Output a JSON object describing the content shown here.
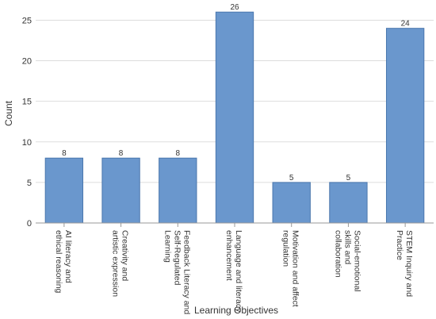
{
  "chart_data": {
    "type": "bar",
    "categories": [
      "AI literacy and ethical reasoning",
      "Creativity and artistic expression",
      "Feedback Literacy and Self-Regulated Learning",
      "Language and literacy enhancement",
      "Motivation and affect regulation",
      "Social-emotional skills and collaboration",
      "STEM Inquiry and Practice"
    ],
    "category_lines": [
      [
        "AI literacy and",
        "ethical reasoning"
      ],
      [
        "Creativity and",
        "artistic expression"
      ],
      [
        "Feedback Literacy and",
        "Self-Regulated",
        "Learning"
      ],
      [
        "Language and literacy",
        "enhancement"
      ],
      [
        "Motivation and affect",
        "regulation"
      ],
      [
        "Social-emotional",
        "skills and",
        "collaboration"
      ],
      [
        "STEM Inquiry and",
        "Practice"
      ]
    ],
    "values": [
      8,
      8,
      8,
      26,
      5,
      5,
      24
    ],
    "data_labels": [
      "8",
      "8",
      "8",
      "26",
      "5",
      "5",
      "24"
    ],
    "xlabel": "Learning Objectives",
    "ylabel": "Count",
    "ylim": [
      0,
      27
    ],
    "yticks": [
      0,
      5,
      10,
      15,
      20,
      25
    ],
    "grid": true,
    "legend": "none",
    "bar_color": "#6a97cd",
    "bar_edge_color": "#4a77ad"
  }
}
